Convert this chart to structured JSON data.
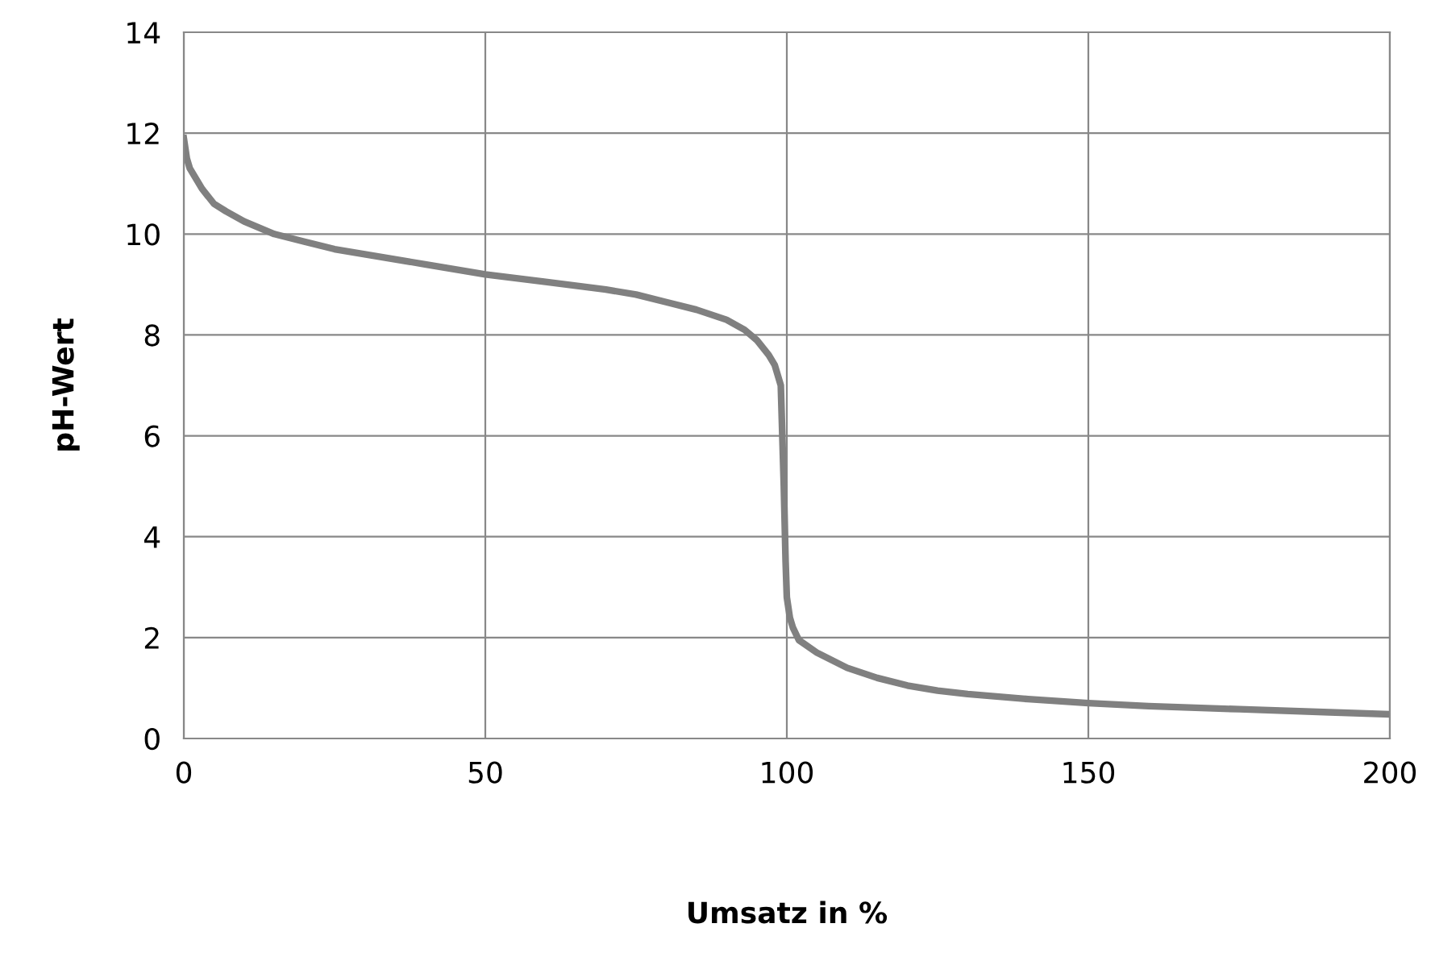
{
  "chart_data": {
    "type": "line",
    "xlabel": "Umsatz in %",
    "ylabel": "pH-Wert",
    "series": [
      {
        "color": "#808080",
        "x": [
          0,
          0.5,
          1,
          2,
          3,
          5,
          7,
          10,
          15,
          20,
          25,
          30,
          40,
          50,
          60,
          70,
          75,
          80,
          85,
          90,
          93,
          95,
          97,
          98,
          99,
          99.5,
          99.8,
          100,
          100.5,
          101,
          102,
          105,
          110,
          115,
          120,
          125,
          130,
          140,
          150,
          160,
          175,
          190,
          200
        ],
        "values": [
          11.9,
          11.5,
          11.3,
          11.1,
          10.9,
          10.6,
          10.45,
          10.25,
          10.0,
          9.85,
          9.7,
          9.6,
          9.4,
          9.2,
          9.05,
          8.9,
          8.8,
          8.65,
          8.5,
          8.3,
          8.1,
          7.9,
          7.6,
          7.4,
          7.0,
          5.0,
          3.5,
          2.8,
          2.4,
          2.2,
          1.95,
          1.7,
          1.4,
          1.2,
          1.05,
          0.95,
          0.88,
          0.78,
          0.7,
          0.64,
          0.58,
          0.52,
          0.48
        ]
      }
    ],
    "xlim": [
      0,
      200
    ],
    "ylim": [
      0,
      14
    ],
    "xticks": [
      0,
      50,
      100,
      150,
      200
    ],
    "yticks": [
      0,
      2,
      4,
      6,
      8,
      10,
      12,
      14
    ],
    "grid": true,
    "marker": "none",
    "line_style": "solid"
  }
}
